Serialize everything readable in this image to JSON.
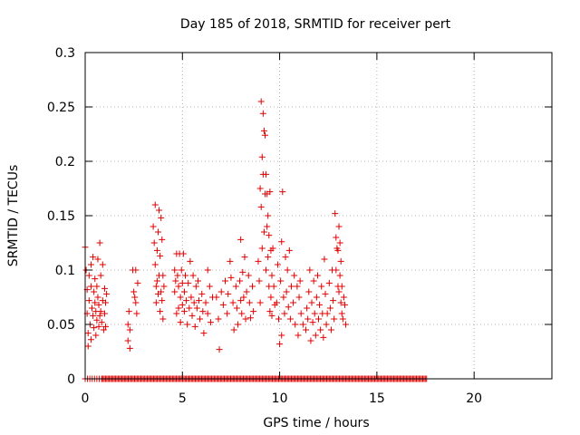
{
  "chart_data": {
    "type": "scatter",
    "title": "Day 185 of 2018, SRMTID for receiver pert",
    "xlabel": "GPS time / hours",
    "ylabel": "SRMTID / TECUs",
    "xlim": [
      0,
      24
    ],
    "ylim": [
      0,
      0.3
    ],
    "xticks": [
      0,
      5,
      10,
      15,
      20
    ],
    "yticks": [
      0,
      0.05,
      0.1,
      0.15,
      0.2,
      0.25,
      0.3
    ],
    "xtick_labels": [
      "0",
      "5",
      "10",
      "15",
      "20"
    ],
    "ytick_labels": [
      "0",
      "0.05",
      "0.1",
      "0.15",
      "0.2",
      "0.25",
      "0.3"
    ],
    "grid": true,
    "marker": "+",
    "color": "#e00000",
    "series": [
      {
        "name": "SRMTID",
        "points": [
          [
            0.0,
            0.121
          ],
          [
            0.05,
            0.1
          ],
          [
            0.1,
            0.082
          ],
          [
            0.1,
            0.06
          ],
          [
            0.15,
            0.042
          ],
          [
            0.15,
            0.03
          ],
          [
            0.2,
            0.095
          ],
          [
            0.2,
            0.072
          ],
          [
            0.25,
            0.05
          ],
          [
            0.3,
            0.105
          ],
          [
            0.3,
            0.085
          ],
          [
            0.3,
            0.036
          ],
          [
            0.35,
            0.065
          ],
          [
            0.4,
            0.058
          ],
          [
            0.4,
            0.112
          ],
          [
            0.45,
            0.08
          ],
          [
            0.45,
            0.047
          ],
          [
            0.5,
            0.092
          ],
          [
            0.5,
            0.07
          ],
          [
            0.55,
            0.062
          ],
          [
            0.55,
            0.04
          ],
          [
            0.6,
            0.085
          ],
          [
            0.6,
            0.054
          ],
          [
            0.65,
            0.11
          ],
          [
            0.65,
            0.075
          ],
          [
            0.7,
            0.068
          ],
          [
            0.7,
            0.048
          ],
          [
            0.75,
            0.125
          ],
          [
            0.75,
            0.058
          ],
          [
            0.8,
            0.095
          ],
          [
            0.8,
            0.062
          ],
          [
            0.85,
            0.052
          ],
          [
            0.9,
            0.105
          ],
          [
            0.9,
            0.072
          ],
          [
            0.95,
            0.045
          ],
          [
            1.0,
            0.083
          ],
          [
            1.0,
            0.06
          ],
          [
            1.05,
            0.07
          ],
          [
            1.05,
            0.048
          ],
          [
            1.1,
            0.078
          ],
          [
            2.2,
            0.05
          ],
          [
            2.2,
            0.035
          ],
          [
            2.25,
            0.062
          ],
          [
            2.3,
            0.045
          ],
          [
            2.3,
            0.028
          ],
          [
            2.45,
            0.1
          ],
          [
            2.5,
            0.08
          ],
          [
            2.55,
            0.075
          ],
          [
            2.6,
            0.1
          ],
          [
            2.6,
            0.07
          ],
          [
            2.65,
            0.06
          ],
          [
            2.7,
            0.088
          ],
          [
            3.5,
            0.14
          ],
          [
            3.55,
            0.125
          ],
          [
            3.6,
            0.16
          ],
          [
            3.6,
            0.105
          ],
          [
            3.65,
            0.085
          ],
          [
            3.65,
            0.07
          ],
          [
            3.7,
            0.118
          ],
          [
            3.7,
            0.09
          ],
          [
            3.75,
            0.135
          ],
          [
            3.75,
            0.078
          ],
          [
            3.8,
            0.155
          ],
          [
            3.8,
            0.095
          ],
          [
            3.85,
            0.113
          ],
          [
            3.85,
            0.062
          ],
          [
            3.9,
            0.148
          ],
          [
            3.9,
            0.08
          ],
          [
            3.95,
            0.128
          ],
          [
            3.95,
            0.072
          ],
          [
            4.0,
            0.095
          ],
          [
            4.0,
            0.055
          ],
          [
            4.05,
            0.085
          ],
          [
            4.6,
            0.1
          ],
          [
            4.6,
            0.08
          ],
          [
            4.65,
            0.09
          ],
          [
            4.7,
            0.115
          ],
          [
            4.7,
            0.06
          ],
          [
            4.75,
            0.095
          ],
          [
            4.8,
            0.085
          ],
          [
            4.8,
            0.065
          ],
          [
            4.85,
            0.115
          ],
          [
            4.9,
            0.075
          ],
          [
            4.9,
            0.052
          ],
          [
            4.95,
            0.1
          ],
          [
            5.0,
            0.088
          ],
          [
            5.0,
            0.068
          ],
          [
            5.05,
            0.115
          ],
          [
            5.1,
            0.08
          ],
          [
            5.1,
            0.062
          ],
          [
            5.15,
            0.095
          ],
          [
            5.2,
            0.072
          ],
          [
            5.25,
            0.05
          ],
          [
            5.3,
            0.088
          ],
          [
            5.35,
            0.065
          ],
          [
            5.4,
            0.108
          ],
          [
            5.45,
            0.075
          ],
          [
            5.5,
            0.058
          ],
          [
            5.55,
            0.095
          ],
          [
            5.6,
            0.07
          ],
          [
            5.65,
            0.048
          ],
          [
            5.7,
            0.085
          ],
          [
            5.75,
            0.065
          ],
          [
            5.8,
            0.09
          ],
          [
            5.85,
            0.072
          ],
          [
            5.9,
            0.055
          ],
          [
            6.0,
            0.078
          ],
          [
            6.05,
            0.062
          ],
          [
            6.1,
            0.042
          ],
          [
            6.2,
            0.07
          ],
          [
            6.3,
            0.1
          ],
          [
            6.3,
            0.06
          ],
          [
            6.4,
            0.085
          ],
          [
            6.45,
            0.052
          ],
          [
            6.55,
            0.075
          ],
          [
            6.75,
            0.075
          ],
          [
            6.85,
            0.055
          ],
          [
            6.9,
            0.027
          ],
          [
            7.0,
            0.08
          ],
          [
            7.1,
            0.068
          ],
          [
            7.2,
            0.09
          ],
          [
            7.3,
            0.06
          ],
          [
            7.35,
            0.078
          ],
          [
            7.45,
            0.108
          ],
          [
            7.5,
            0.093
          ],
          [
            7.6,
            0.07
          ],
          [
            7.65,
            0.045
          ],
          [
            7.75,
            0.085
          ],
          [
            7.8,
            0.065
          ],
          [
            7.85,
            0.05
          ],
          [
            7.95,
            0.09
          ],
          [
            8.0,
            0.128
          ],
          [
            8.0,
            0.072
          ],
          [
            8.05,
            0.06
          ],
          [
            8.1,
            0.098
          ],
          [
            8.15,
            0.075
          ],
          [
            8.2,
            0.112
          ],
          [
            8.25,
            0.055
          ],
          [
            8.3,
            0.08
          ],
          [
            8.4,
            0.095
          ],
          [
            8.45,
            0.07
          ],
          [
            8.5,
            0.056
          ],
          [
            8.6,
            0.085
          ],
          [
            8.65,
            0.062
          ],
          [
            8.9,
            0.108
          ],
          [
            8.95,
            0.09
          ],
          [
            9.0,
            0.175
          ],
          [
            9.0,
            0.07
          ],
          [
            9.05,
            0.255
          ],
          [
            9.05,
            0.158
          ],
          [
            9.1,
            0.204
          ],
          [
            9.1,
            0.12
          ],
          [
            9.15,
            0.244
          ],
          [
            9.15,
            0.188
          ],
          [
            9.2,
            0.228
          ],
          [
            9.2,
            0.135
          ],
          [
            9.25,
            0.224
          ],
          [
            9.25,
            0.17
          ],
          [
            9.3,
            0.188
          ],
          [
            9.3,
            0.1
          ],
          [
            9.35,
            0.17
          ],
          [
            9.35,
            0.14
          ],
          [
            9.4,
            0.15
          ],
          [
            9.4,
            0.112
          ],
          [
            9.45,
            0.132
          ],
          [
            9.45,
            0.085
          ],
          [
            9.5,
            0.172
          ],
          [
            9.5,
            0.062
          ],
          [
            9.55,
            0.118
          ],
          [
            9.55,
            0.075
          ],
          [
            9.6,
            0.095
          ],
          [
            9.6,
            0.058
          ],
          [
            9.65,
            0.12
          ],
          [
            9.7,
            0.085
          ],
          [
            9.75,
            0.068
          ],
          [
            9.85,
            0.07
          ],
          [
            9.9,
            0.105
          ],
          [
            9.95,
            0.055
          ],
          [
            10.0,
            0.032
          ],
          [
            10.05,
            0.09
          ],
          [
            10.1,
            0.126
          ],
          [
            10.1,
            0.04
          ],
          [
            10.15,
            0.172
          ],
          [
            10.2,
            0.075
          ],
          [
            10.25,
            0.06
          ],
          [
            10.3,
            0.112
          ],
          [
            10.35,
            0.08
          ],
          [
            10.4,
            0.1
          ],
          [
            10.45,
            0.066
          ],
          [
            10.5,
            0.118
          ],
          [
            10.55,
            0.055
          ],
          [
            10.6,
            0.085
          ],
          [
            10.7,
            0.07
          ],
          [
            10.75,
            0.095
          ],
          [
            10.8,
            0.05
          ],
          [
            10.9,
            0.085
          ],
          [
            10.95,
            0.04
          ],
          [
            11.0,
            0.075
          ],
          [
            11.05,
            0.09
          ],
          [
            11.1,
            0.06
          ],
          [
            11.2,
            0.05
          ],
          [
            11.35,
            0.045
          ],
          [
            11.4,
            0.065
          ],
          [
            11.45,
            0.055
          ],
          [
            11.5,
            0.08
          ],
          [
            11.55,
            0.1
          ],
          [
            11.6,
            0.035
          ],
          [
            11.65,
            0.07
          ],
          [
            11.7,
            0.052
          ],
          [
            11.75,
            0.09
          ],
          [
            11.8,
            0.06
          ],
          [
            11.85,
            0.04
          ],
          [
            11.9,
            0.075
          ],
          [
            11.95,
            0.095
          ],
          [
            12.0,
            0.055
          ],
          [
            12.05,
            0.068
          ],
          [
            12.1,
            0.045
          ],
          [
            12.15,
            0.085
          ],
          [
            12.2,
            0.06
          ],
          [
            12.25,
            0.038
          ],
          [
            12.3,
            0.11
          ],
          [
            12.35,
            0.078
          ],
          [
            12.4,
            0.05
          ],
          [
            12.45,
            0.06
          ],
          [
            12.55,
            0.088
          ],
          [
            12.6,
            0.065
          ],
          [
            12.65,
            0.045
          ],
          [
            12.7,
            0.1
          ],
          [
            12.75,
            0.072
          ],
          [
            12.8,
            0.055
          ],
          [
            12.85,
            0.152
          ],
          [
            12.9,
            0.13
          ],
          [
            12.9,
            0.1
          ],
          [
            12.95,
            0.12
          ],
          [
            13.0,
            0.118
          ],
          [
            13.0,
            0.085
          ],
          [
            13.05,
            0.14
          ],
          [
            13.05,
            0.08
          ],
          [
            13.1,
            0.125
          ],
          [
            13.1,
            0.095
          ],
          [
            13.15,
            0.108
          ],
          [
            13.15,
            0.07
          ],
          [
            13.2,
            0.085
          ],
          [
            13.2,
            0.06
          ],
          [
            13.25,
            0.055
          ],
          [
            13.3,
            0.075
          ],
          [
            13.35,
            0.068
          ],
          [
            13.4,
            0.05
          ]
        ]
      }
    ],
    "zero_segments": [
      [
        0.0,
        0.85
      ],
      [
        0.85,
        17.6
      ]
    ]
  }
}
